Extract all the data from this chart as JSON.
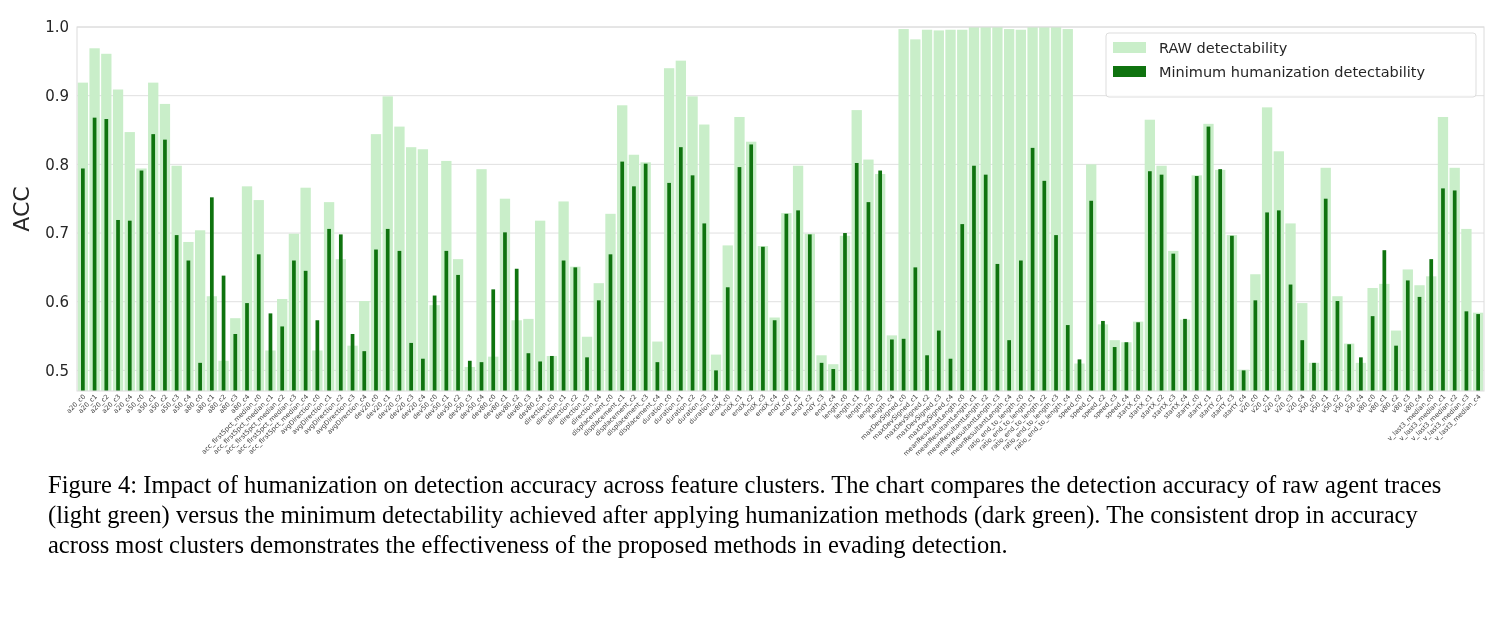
{
  "chart_data": {
    "type": "bar",
    "ylabel": "ACC",
    "categories": [
      "a20_c0",
      "a20_c1",
      "a20_c2",
      "a20_c3",
      "a20_c4",
      "a50_c0",
      "a50_c1",
      "a50_c2",
      "a50_c3",
      "a50_c4",
      "a80_c0",
      "a80_c1",
      "a80_c2",
      "a80_c3",
      "a80_c4",
      "acc_first5pct_median_c0",
      "acc_first5pct_median_c1",
      "acc_first5pct_median_c2",
      "acc_first5pct_median_c3",
      "acc_first5pct_median_c4",
      "avgDirection_c0",
      "avgDirection_c1",
      "avgDirection_c2",
      "avgDirection_c3",
      "avgDirection_c4",
      "dev20_c0",
      "dev20_c1",
      "dev20_c2",
      "dev20_c3",
      "dev20_c4",
      "dev50_c0",
      "dev50_c1",
      "dev50_c2",
      "dev50_c3",
      "dev50_c4",
      "dev80_c0",
      "dev80_c1",
      "dev80_c2",
      "dev80_c3",
      "dev80_c4",
      "direction_c0",
      "direction_c1",
      "direction_c2",
      "direction_c3",
      "direction_c4",
      "displacement_c0",
      "displacement_c1",
      "displacement_c2",
      "displacement_c3",
      "displacement_c4",
      "duration_c0",
      "duration_c1",
      "duration_c2",
      "duration_c3",
      "duration_c4",
      "endX_c0",
      "endX_c1",
      "endX_c2",
      "endX_c3",
      "endX_c4",
      "endY_c0",
      "endY_c1",
      "endY_c2",
      "endY_c3",
      "endY_c4",
      "length_c0",
      "length_c1",
      "length_c2",
      "length_c3",
      "length_c4",
      "maxDevSigned_c0",
      "maxDevSigned_c1",
      "maxDevSigned_c2",
      "maxDevSigned_c3",
      "maxDevSigned_c4",
      "meanResultantLength_c0",
      "meanResultantLength_c1",
      "meanResultantLength_c2",
      "meanResultantLength_c3",
      "meanResultantLength_c4",
      "ratio_end_to_length_c0",
      "ratio_end_to_length_c1",
      "ratio_end_to_length_c2",
      "ratio_end_to_length_c3",
      "ratio_end_to_length_c4",
      "speed_c0",
      "speed_c1",
      "speed_c2",
      "speed_c3",
      "speed_c4",
      "startX_c0",
      "startX_c1",
      "startX_c2",
      "startX_c3",
      "startX_c4",
      "startY_c0",
      "startY_c1",
      "startY_c2",
      "startY_c3",
      "startY_c4",
      "v20_c0",
      "v20_c1",
      "v20_c2",
      "v20_c3",
      "v20_c4",
      "v50_c0",
      "v50_c1",
      "v50_c2",
      "v50_c3",
      "v50_c4",
      "v80_c0",
      "v80_c1",
      "v80_c2",
      "v80_c3",
      "v80_c4",
      "v_last3_median_c0",
      "v_last3_median_c1",
      "v_last3_median_c2",
      "v_last3_median_c3",
      "v_last3_median_c4"
    ],
    "series": [
      {
        "name": "RAW detectability",
        "color": "#c9eec9",
        "values": [
          0.919,
          0.969,
          0.961,
          0.909,
          0.847,
          0.794,
          0.919,
          0.888,
          0.798,
          0.687,
          0.704,
          0.608,
          0.514,
          0.576,
          0.768,
          0.748,
          0.529,
          0.604,
          0.699,
          0.766,
          0.529,
          0.745,
          0.662,
          0.536,
          0.601,
          0.844,
          0.899,
          0.855,
          0.825,
          0.822,
          0.595,
          0.805,
          0.662,
          0.505,
          0.793,
          0.52,
          0.75,
          0.573,
          0.575,
          0.718,
          0.521,
          0.746,
          0.651,
          0.549,
          0.627,
          0.728,
          0.886,
          0.814,
          0.803,
          0.542,
          0.94,
          0.951,
          0.899,
          0.858,
          0.523,
          0.682,
          0.869,
          0.833,
          0.681,
          0.577,
          0.729,
          0.798,
          0.699,
          0.522,
          0.509,
          0.696,
          0.879,
          0.807,
          0.786,
          0.551,
          0.997,
          0.982,
          0.996,
          0.995,
          0.996,
          0.996,
          1.0,
          1.0,
          1.0,
          0.997,
          0.996,
          1.0,
          1.0,
          1.0,
          0.997,
          0.51,
          0.8,
          0.567,
          0.544,
          0.541,
          0.571,
          0.865,
          0.798,
          0.674,
          0.574,
          0.784,
          0.859,
          0.792,
          0.697,
          0.501,
          0.64,
          0.883,
          0.819,
          0.714,
          0.598,
          0.511,
          0.795,
          0.608,
          0.539,
          0.511,
          0.62,
          0.626,
          0.558,
          0.647,
          0.624,
          0.637,
          0.869,
          0.795,
          0.706,
          0.584
        ]
      },
      {
        "name": "Minimum humanization detectability",
        "color": "#0f730f",
        "values": [
          0.794,
          0.868,
          0.866,
          0.719,
          0.718,
          0.791,
          0.844,
          0.836,
          0.697,
          0.66,
          0.511,
          0.752,
          0.638,
          0.553,
          0.598,
          0.669,
          0.583,
          0.564,
          0.66,
          0.645,
          0.573,
          0.706,
          0.698,
          0.553,
          0.528,
          0.676,
          0.706,
          0.674,
          0.54,
          0.517,
          0.609,
          0.674,
          0.639,
          0.514,
          0.512,
          0.618,
          0.701,
          0.648,
          0.525,
          0.513,
          0.521,
          0.66,
          0.65,
          0.519,
          0.602,
          0.669,
          0.804,
          0.768,
          0.801,
          0.512,
          0.773,
          0.825,
          0.784,
          0.714,
          0.5,
          0.621,
          0.796,
          0.829,
          0.68,
          0.573,
          0.728,
          0.733,
          0.698,
          0.511,
          0.502,
          0.7,
          0.802,
          0.745,
          0.791,
          0.545,
          0.546,
          0.65,
          0.522,
          0.558,
          0.517,
          0.713,
          0.798,
          0.785,
          0.655,
          0.544,
          0.66,
          0.824,
          0.776,
          0.697,
          0.566,
          0.516,
          0.747,
          0.572,
          0.534,
          0.541,
          0.57,
          0.79,
          0.785,
          0.67,
          0.575,
          0.783,
          0.855,
          0.793,
          0.696,
          0.5,
          0.602,
          0.73,
          0.733,
          0.625,
          0.544,
          0.511,
          0.75,
          0.601,
          0.538,
          0.519,
          0.579,
          0.675,
          0.536,
          0.631,
          0.607,
          0.662,
          0.765,
          0.762,
          0.586,
          0.582
        ]
      }
    ],
    "ylim": [
      0.47,
      1.0
    ],
    "yticks": [
      0.5,
      0.6,
      0.7,
      0.8,
      0.9,
      {
        "value": 1.0,
        "label": "1.0"
      }
    ],
    "grid": "y",
    "legend": "top right",
    "annotations": [
      "Figure 4: Impact of humanization on detection accuracy across feature clusters. The chart compares the detection accuracy of raw agent traces (light green) versus the minimum detectability achieved after applying humanization methods (dark green). The consistent drop in accuracy across most clusters demonstrates the effectiveness of the proposed methods in evading detection."
    ]
  }
}
